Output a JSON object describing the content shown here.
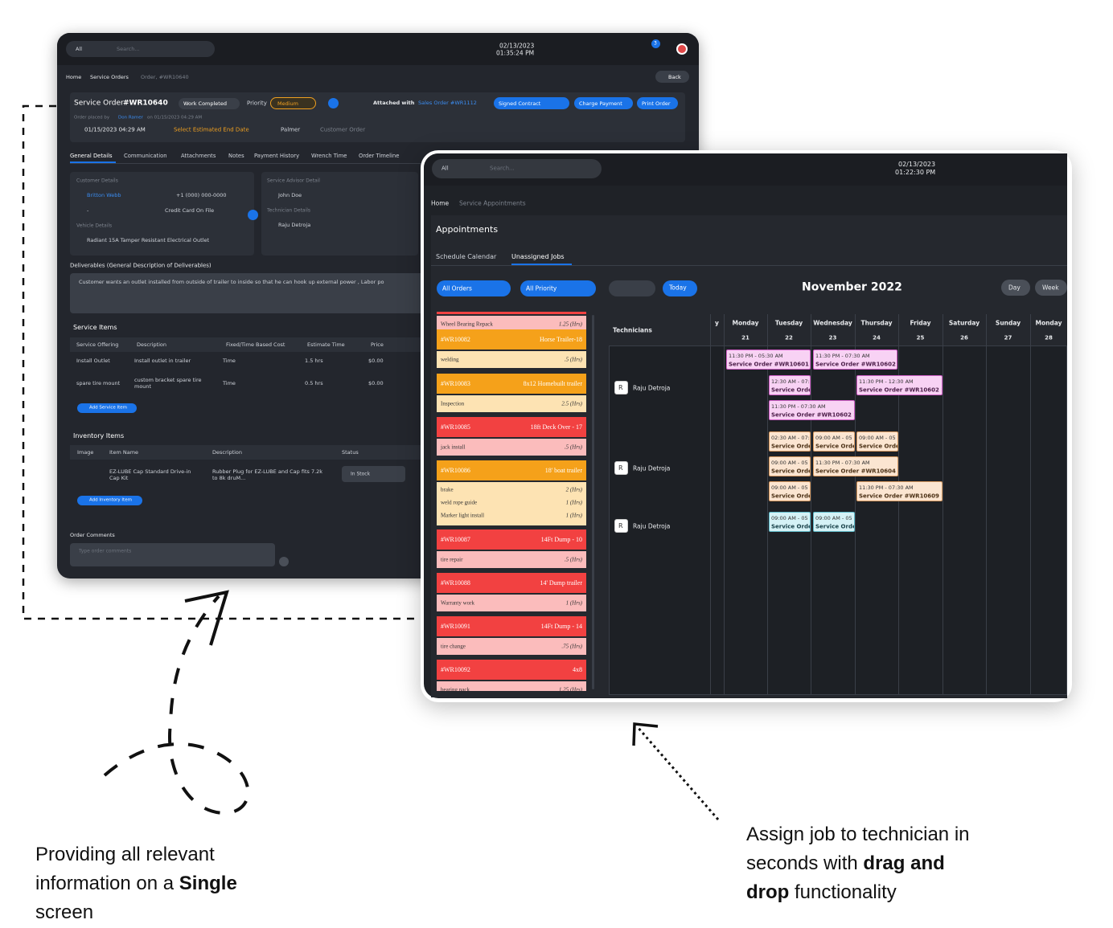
{
  "back_window": {
    "topbar": {
      "filter": "All",
      "search_placeholder": "Search...",
      "date": "02/13/2023",
      "time": "01:35:24 PM",
      "notification_count": "3"
    },
    "breadcrumb": [
      "Home",
      "Service Orders",
      "Order, #WR10640"
    ],
    "back_button": "Back",
    "order": {
      "title": "Service Order",
      "number": "#WR10640",
      "status": "Work Completed",
      "priority_label": "Priority",
      "priority": "Medium",
      "attached_label": "Attached with",
      "attached_order": "Sales Order #WR1112",
      "contract_button": "Signed Contract",
      "charge_button": "Charge Payment",
      "print_button": "Print Order",
      "placed_by": "Order placed by",
      "placed_name": "Don Ramer",
      "placed_on": "on 01/15/2023 04:29 AM",
      "start_date": "01/15/2023 04:29 AM",
      "end_date": "Select Estimated End Date",
      "location": "Palmer",
      "order_type": "Customer Order"
    },
    "tabs": [
      "General Details",
      "Communication",
      "Attachments",
      "Notes",
      "Payment History",
      "Wrench Time",
      "Order Timeline"
    ],
    "customer": {
      "heading": "Customer Details",
      "name": "Britton Webb",
      "phone": "+1 (000) 000-0000",
      "email": "-",
      "payment": "Credit Card On File",
      "vehicle_heading": "Vehicle Details",
      "vehicle": "Radiant 15A Tamper Resistant Electrical Outlet"
    },
    "advisor": {
      "heading": "Service Advisor Detail",
      "name": "John Doe",
      "technician_heading": "Technician Details",
      "technician": "Raju Detroja"
    },
    "deliverables": {
      "label": "Deliverables (General Description of Deliverables)",
      "text": "Customer wants an outlet installed from outside of trailer to inside so that he can hook up external power , Labor po"
    },
    "service_items": {
      "title": "Service Items",
      "columns": [
        "Service Offering",
        "Description",
        "Fixed/Time Based Cost",
        "Estimate Time",
        "Price"
      ],
      "rows": [
        [
          "Install Outlet",
          "Install outlet in trailer",
          "Time",
          "1.5 hrs",
          "$0.00"
        ],
        [
          "spare tire mount",
          "custom bracket spare tire mount",
          "Time",
          "0.5 hrs",
          "$0.00"
        ]
      ],
      "add_button": "Add Service Item"
    },
    "inventory_items": {
      "title": "Inventory Items",
      "columns": [
        "Image",
        "Item Name",
        "Description",
        "Status"
      ],
      "rows": [
        [
          "EZ-LUBE Cap Standard Drive-in Cap Kit",
          "Rubber Plug for EZ-LUBE and Cap fits 7.2k to 8k druM...",
          "In Stock"
        ]
      ],
      "add_button": "Add Inventory Item"
    },
    "comments": {
      "label": "Order Comments",
      "placeholder": "Type order comments"
    }
  },
  "front_window": {
    "topbar": {
      "filter": "All",
      "search_placeholder": "Search...",
      "date": "02/13/2023",
      "time": "01:22:30 PM"
    },
    "breadcrumb": [
      "Home",
      "Service Appointments"
    ],
    "title": "Appointments",
    "tabs": [
      "Schedule Calendar",
      "Unassigned Jobs"
    ],
    "filters": [
      "All Orders",
      "All Priority"
    ],
    "today_button": "Today",
    "month": "November 2022",
    "views": [
      "Day",
      "Week"
    ],
    "jobs": [
      {
        "tasks": [
          {
            "name": "Wheel Bearing Repack",
            "hours": "1.25 (Hrs)"
          }
        ]
      },
      {
        "id": "#WR10082",
        "title": "Horse Trailer-18",
        "tasks": [
          {
            "name": "welding",
            "hours": ".5 (Hrs)"
          }
        ]
      },
      {
        "id": "#WR10083",
        "title": "8x12 Homebuilt trailer",
        "tasks": [
          {
            "name": "Inspection",
            "hours": "2.5 (Hrs)"
          }
        ]
      },
      {
        "id": "#WR10085",
        "title": "18ft Deck Over - 17",
        "tasks": [
          {
            "name": "jack install",
            "hours": ".5 (Hrs)"
          }
        ]
      },
      {
        "id": "#WR10086",
        "title": "18' boat trailer",
        "tasks": [
          {
            "name": "brake",
            "hours": "2 (Hrs)"
          },
          {
            "name": "weld rope guide",
            "hours": "1 (Hrs)"
          },
          {
            "name": "Marker light install",
            "hours": "1 (Hrs)"
          }
        ]
      },
      {
        "id": "#WR10087",
        "title": "14Ft Dump - 10",
        "tasks": [
          {
            "name": "tire repair",
            "hours": ".5 (Hrs)"
          }
        ]
      },
      {
        "id": "#WR10088",
        "title": "14' Dump trailer",
        "tasks": [
          {
            "name": "Warranty work",
            "hours": "1 (Hrs)"
          }
        ]
      },
      {
        "id": "#WR10091",
        "title": "14Ft Dump - 14",
        "tasks": [
          {
            "name": "tire change",
            "hours": ".75 (Hrs)"
          }
        ]
      },
      {
        "id": "#WR10092",
        "title": "4x8",
        "tasks": [
          {
            "name": "bearing pack",
            "hours": "1.25 (Hrs)"
          }
        ]
      }
    ],
    "calendar": {
      "technicians_label": "Technicians",
      "days": [
        {
          "name": "y"
        },
        {
          "name": "Monday",
          "date": "21"
        },
        {
          "name": "Tuesday",
          "date": "22"
        },
        {
          "name": "Wednesday",
          "date": "23"
        },
        {
          "name": "Thursday",
          "date": "24"
        },
        {
          "name": "Friday",
          "date": "25"
        },
        {
          "name": "Saturday",
          "date": "26"
        },
        {
          "name": "Sunday",
          "date": "27"
        },
        {
          "name": "Monday",
          "date": "28"
        }
      ],
      "technicians": [
        {
          "initial": "R",
          "name": "Raju Detroja"
        },
        {
          "initial": "R",
          "name": "Raju Detroja"
        },
        {
          "initial": "R",
          "name": "Raju Detroja"
        }
      ],
      "events": [
        {
          "time": "11:30 PM - 05:30 AM",
          "title": "Service Order #WR10601 -"
        },
        {
          "time": "11:30 PM - 07:30 AM",
          "title": "Service Order #WR10602 S"
        },
        {
          "time": "12:30 AM - 07:3",
          "title": "Service Orde"
        },
        {
          "time": "11:30 PM - 12:30 AM",
          "title": "Service Order #WR10602 S"
        },
        {
          "time": "11:30 PM - 07:30 AM",
          "title": "Service Order #WR10602 S"
        },
        {
          "time": "02:30 AM - 07:",
          "title": "Service Orde"
        },
        {
          "time": "09:00 AM - 05",
          "title": "Service Orde"
        },
        {
          "time": "09:00 AM - 05",
          "title": "Service Orde"
        },
        {
          "time": "09:00 AM - 05",
          "title": "Service Orde"
        },
        {
          "time": "11:30 PM - 07:30 AM",
          "title": "Service Order #WR10604 S"
        },
        {
          "time": "09:00 AM - 05",
          "title": "Service Orde"
        },
        {
          "time": "11:30 PM - 07:30 AM",
          "title": "Service Order #WR10609 S"
        },
        {
          "time": "09:00 AM - 05",
          "title": "Service Orde"
        },
        {
          "time": "09:00 AM - 05",
          "title": "Service Orde"
        }
      ]
    }
  },
  "annotations": {
    "left": {
      "before": "Providing all relevant information on a",
      "bold": "Single",
      "after": "screen"
    },
    "right": {
      "before": "Assign job to technician in seconds with",
      "bold": "drag and drop",
      "after": "functionality"
    }
  }
}
